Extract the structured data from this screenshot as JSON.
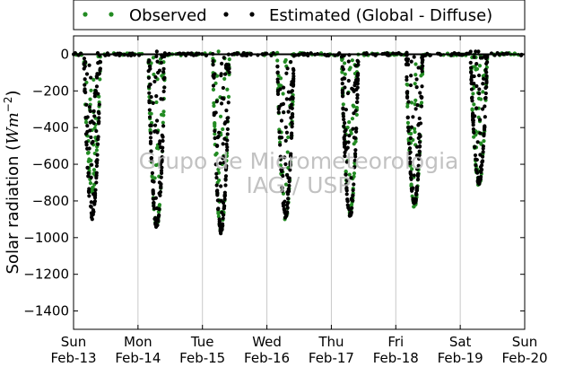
{
  "chart_data": {
    "type": "scatter",
    "title": "",
    "ylabel": "Solar radiation (W m⁻²)",
    "ylabel_main": "Solar radiation (",
    "ylabel_unit": "Wm",
    "ylabel_exp": "−2",
    "ylabel_close": ")",
    "xlabel": "",
    "ylim": [
      -1500,
      100
    ],
    "xlim": [
      0,
      7
    ],
    "y_ticks": [
      0,
      -200,
      -400,
      -600,
      -800,
      -1000,
      -1200,
      -1400
    ],
    "y_tick_labels": [
      "0",
      "−200",
      "−400",
      "−600",
      "−800",
      "−1000",
      "−1200",
      "−1400"
    ],
    "x_ticks": [
      {
        "day": "Sun",
        "date": "Feb-13"
      },
      {
        "day": "Mon",
        "date": "Feb-14"
      },
      {
        "day": "Tue",
        "date": "Feb-15"
      },
      {
        "day": "Wed",
        "date": "Feb-16"
      },
      {
        "day": "Thu",
        "date": "Feb-17"
      },
      {
        "day": "Fri",
        "date": "Feb-18"
      },
      {
        "day": "Sat",
        "date": "Feb-19"
      },
      {
        "day": "Sun",
        "date": "Feb-20"
      }
    ],
    "grid": "vertical",
    "legend": "top, outside",
    "series": [
      {
        "name": "Observed",
        "color": "#228b22",
        "marker": "dot"
      },
      {
        "name": "Estimated (Global - Diffuse)",
        "color": "#000000",
        "marker": "dot"
      }
    ],
    "daily_minimum": [
      {
        "date": "Feb-13",
        "observed": -740,
        "estimated": -880
      },
      {
        "date": "Feb-14",
        "observed": -930,
        "estimated": -930
      },
      {
        "date": "Feb-15",
        "observed": -960,
        "estimated": -960
      },
      {
        "date": "Feb-16",
        "observed": -890,
        "estimated": -880
      },
      {
        "date": "Feb-17",
        "observed": -860,
        "estimated": -870
      },
      {
        "date": "Feb-18",
        "observed": -820,
        "estimated": -810
      },
      {
        "date": "Feb-19",
        "observed": -700,
        "estimated": -690
      }
    ],
    "zero_line": 0
  },
  "watermark": {
    "line1": "Grupo de Micrometeorologia",
    "line2": "IAG / USP"
  },
  "colors": {
    "observed": "#228b22",
    "estimated": "#000000",
    "grid": "#c8c8c8",
    "watermark": "#b8b8b8"
  }
}
